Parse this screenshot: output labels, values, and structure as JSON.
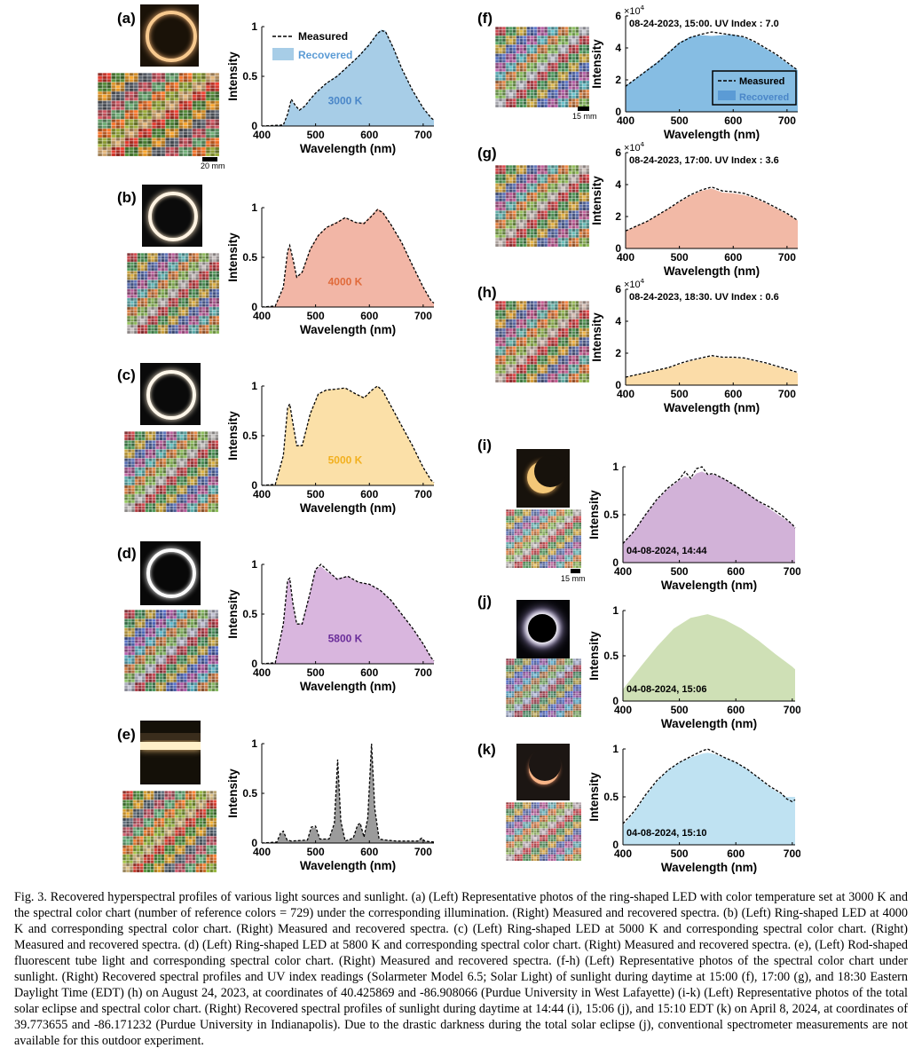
{
  "panels": [
    {
      "id": "a",
      "label": "(a)",
      "chart_data": {
        "type": "area",
        "xlabel": "Wavelength (nm)",
        "ylabel": "Intensity",
        "xlim": [
          400,
          720
        ],
        "ylim": [
          0,
          1
        ],
        "xticks": [
          400,
          500,
          600,
          700
        ],
        "yticks": [
          0,
          0.5,
          1
        ],
        "annotation": "3000 K",
        "annotation_color": "#4a86c8",
        "fill": "#a7cde7",
        "legend": {
          "placement": "top-left",
          "entries": [
            "Measured",
            "Recovered"
          ]
        },
        "x": [
          400,
          440,
          448,
          455,
          462,
          470,
          480,
          490,
          500,
          520,
          540,
          560,
          580,
          600,
          615,
          622,
          630,
          645,
          660,
          680,
          700,
          715,
          720
        ],
        "measured": [
          0,
          0.01,
          0.12,
          0.27,
          0.21,
          0.16,
          0.2,
          0.27,
          0.33,
          0.43,
          0.5,
          0.6,
          0.7,
          0.82,
          0.93,
          0.96,
          0.95,
          0.78,
          0.58,
          0.36,
          0.18,
          0.08,
          0.06
        ],
        "recovered": [
          0,
          0.01,
          0.11,
          0.26,
          0.2,
          0.16,
          0.2,
          0.27,
          0.33,
          0.43,
          0.51,
          0.6,
          0.71,
          0.83,
          0.94,
          0.97,
          0.96,
          0.79,
          0.58,
          0.36,
          0.18,
          0.08,
          0.06
        ]
      }
    },
    {
      "id": "b",
      "label": "(b)",
      "chart_data": {
        "type": "area",
        "xlabel": "Wavelength (nm)",
        "ylabel": "Intensity",
        "xlim": [
          400,
          720
        ],
        "ylim": [
          0,
          1
        ],
        "xticks": [
          400,
          500,
          600,
          700
        ],
        "yticks": [
          0,
          0.5,
          1
        ],
        "annotation": "4000 K",
        "annotation_color": "#e06a3a",
        "fill": "#f2b6a6",
        "x": [
          400,
          425,
          440,
          448,
          452,
          458,
          465,
          475,
          490,
          505,
          520,
          540,
          555,
          575,
          590,
          605,
          615,
          625,
          640,
          660,
          680,
          700,
          715,
          720
        ],
        "measured": [
          0,
          0.01,
          0.2,
          0.56,
          0.62,
          0.48,
          0.3,
          0.35,
          0.58,
          0.72,
          0.8,
          0.85,
          0.9,
          0.85,
          0.84,
          0.92,
          0.98,
          0.95,
          0.83,
          0.65,
          0.42,
          0.2,
          0.06,
          0.04
        ],
        "recovered": [
          0,
          0.01,
          0.19,
          0.55,
          0.61,
          0.47,
          0.3,
          0.36,
          0.59,
          0.73,
          0.8,
          0.86,
          0.9,
          0.85,
          0.85,
          0.93,
          0.99,
          0.96,
          0.83,
          0.65,
          0.42,
          0.2,
          0.06,
          0.04
        ]
      }
    },
    {
      "id": "c",
      "label": "(c)",
      "chart_data": {
        "type": "area",
        "xlabel": "Wavelength (nm)",
        "ylabel": "Intensity",
        "xlim": [
          400,
          720
        ],
        "ylim": [
          0,
          1
        ],
        "xticks": [
          400,
          500,
          600,
          700
        ],
        "yticks": [
          0,
          0.5,
          1
        ],
        "annotation": "5000 K",
        "annotation_color": "#f2b01e",
        "fill": "#fbe0a8",
        "x": [
          400,
          425,
          440,
          448,
          452,
          458,
          465,
          475,
          490,
          505,
          520,
          540,
          555,
          575,
          590,
          605,
          615,
          625,
          640,
          660,
          680,
          700,
          715,
          720
        ],
        "measured": [
          0,
          0.01,
          0.3,
          0.78,
          0.82,
          0.62,
          0.4,
          0.4,
          0.72,
          0.92,
          0.96,
          0.97,
          0.98,
          0.92,
          0.88,
          0.96,
          1.0,
          0.95,
          0.8,
          0.6,
          0.4,
          0.18,
          0.05,
          0.03
        ],
        "recovered": [
          0,
          0.01,
          0.29,
          0.77,
          0.81,
          0.61,
          0.4,
          0.41,
          0.73,
          0.92,
          0.96,
          0.97,
          0.98,
          0.92,
          0.89,
          0.96,
          1.0,
          0.95,
          0.8,
          0.6,
          0.4,
          0.18,
          0.05,
          0.03
        ]
      }
    },
    {
      "id": "d",
      "label": "(d)",
      "chart_data": {
        "type": "area",
        "xlabel": "Wavelength (nm)",
        "ylabel": "Intensity",
        "xlim": [
          400,
          720
        ],
        "ylim": [
          0,
          1
        ],
        "xticks": [
          400,
          500,
          600,
          700
        ],
        "yticks": [
          0,
          0.5,
          1
        ],
        "annotation": "5800 K",
        "annotation_color": "#6a2d9a",
        "fill": "#d9b6de",
        "x": [
          400,
          425,
          440,
          448,
          452,
          458,
          465,
          475,
          490,
          500,
          510,
          520,
          540,
          560,
          580,
          600,
          620,
          640,
          660,
          680,
          700,
          715,
          720
        ],
        "measured": [
          0,
          0.01,
          0.4,
          0.84,
          0.86,
          0.6,
          0.4,
          0.4,
          0.72,
          0.95,
          1.0,
          0.95,
          0.85,
          0.88,
          0.82,
          0.8,
          0.74,
          0.64,
          0.5,
          0.36,
          0.2,
          0.06,
          0.03
        ],
        "recovered": [
          0,
          0.01,
          0.39,
          0.83,
          0.85,
          0.59,
          0.4,
          0.41,
          0.73,
          0.95,
          0.98,
          0.93,
          0.86,
          0.88,
          0.82,
          0.8,
          0.74,
          0.64,
          0.5,
          0.36,
          0.2,
          0.06,
          0.03
        ]
      }
    },
    {
      "id": "e",
      "label": "(e)",
      "chart_data": {
        "type": "area",
        "xlabel": "Wavelength (nm)",
        "ylabel": "Intensity",
        "xlim": [
          400,
          720
        ],
        "ylim": [
          0,
          1
        ],
        "xticks": [
          400,
          500,
          600,
          700
        ],
        "yticks": [
          0,
          0.5,
          1
        ],
        "fill": "#9b9b9b",
        "x": [
          400,
          428,
          435,
          440,
          447,
          455,
          485,
          492,
          500,
          508,
          525,
          535,
          541,
          547,
          555,
          570,
          578,
          583,
          590,
          597,
          604,
          610,
          618,
          630,
          650,
          690,
          697,
          703,
          720
        ],
        "measured": [
          0,
          0.01,
          0.1,
          0.12,
          0.03,
          0.02,
          0.03,
          0.16,
          0.17,
          0.04,
          0.04,
          0.2,
          0.84,
          0.22,
          0.02,
          0.05,
          0.18,
          0.2,
          0.06,
          0.25,
          1.0,
          0.35,
          0.04,
          0.03,
          0.02,
          0.02,
          0.05,
          0.02,
          0.01
        ],
        "recovered": [
          0,
          0.01,
          0.09,
          0.11,
          0.03,
          0.02,
          0.03,
          0.15,
          0.16,
          0.04,
          0.04,
          0.19,
          0.83,
          0.22,
          0.02,
          0.05,
          0.17,
          0.2,
          0.06,
          0.24,
          0.99,
          0.34,
          0.04,
          0.03,
          0.02,
          0.02,
          0.05,
          0.02,
          0.01
        ]
      }
    },
    {
      "id": "f",
      "label": "(f)",
      "scale": "15 mm",
      "chart_data": {
        "type": "area",
        "xlabel": "Wavelength (nm)",
        "ylabel": "Intensity",
        "xlim": [
          400,
          720
        ],
        "ylim": [
          0,
          60000
        ],
        "xticks": [
          400,
          500,
          600,
          700
        ],
        "yticks": [
          0,
          2,
          4,
          6
        ],
        "multiplier": "×10",
        "multiplier_exp": "4",
        "title": "08-24-2023, 15:00. UV Index : 7.0",
        "fill": "#86bde3",
        "legend": {
          "placement": "bottom-right",
          "entries": [
            "Measured",
            "Recovered"
          ]
        },
        "x": [
          400,
          420,
          440,
          460,
          480,
          500,
          520,
          540,
          560,
          580,
          600,
          620,
          640,
          660,
          680,
          700,
          720
        ],
        "measured": [
          16000,
          21000,
          26000,
          31000,
          37000,
          43000,
          46500,
          48500,
          50000,
          49000,
          48000,
          47000,
          44000,
          40000,
          36000,
          31000,
          26000
        ],
        "recovered": [
          16500,
          21000,
          26500,
          31500,
          37500,
          43500,
          47000,
          48000,
          47500,
          48000,
          48500,
          46500,
          43500,
          39500,
          35500,
          30500,
          26000
        ]
      }
    },
    {
      "id": "g",
      "label": "(g)",
      "chart_data": {
        "type": "area",
        "xlabel": "Wavelength (nm)",
        "ylabel": "Intensity",
        "xlim": [
          400,
          720
        ],
        "ylim": [
          0,
          60000
        ],
        "xticks": [
          400,
          500,
          600,
          700
        ],
        "yticks": [
          0,
          2,
          4,
          6
        ],
        "multiplier": "×10",
        "multiplier_exp": "4",
        "title": "08-24-2023, 17:00. UV Index : 3.6",
        "fill": "#f2b9a6",
        "x": [
          400,
          420,
          440,
          460,
          480,
          500,
          520,
          540,
          560,
          580,
          600,
          620,
          640,
          660,
          680,
          700,
          720
        ],
        "measured": [
          11000,
          14000,
          17000,
          21000,
          25000,
          29500,
          33500,
          36500,
          38500,
          36000,
          35500,
          34500,
          32000,
          29000,
          25500,
          22000,
          17500
        ],
        "recovered": [
          11000,
          14000,
          17000,
          21000,
          25000,
          29000,
          33000,
          36000,
          37500,
          35000,
          34500,
          33500,
          31500,
          28500,
          25000,
          21500,
          17500
        ]
      }
    },
    {
      "id": "h",
      "label": "(h)",
      "chart_data": {
        "type": "area",
        "xlabel": "Wavelength (nm)",
        "ylabel": "Intensity",
        "xlim": [
          400,
          720
        ],
        "ylim": [
          0,
          60000
        ],
        "xticks": [
          400,
          500,
          600,
          700
        ],
        "yticks": [
          0,
          2,
          4,
          6
        ],
        "multiplier": "×10",
        "multiplier_exp": "4",
        "title": "08-24-2023, 18:30. UV Index : 0.6",
        "fill": "#fbdca8",
        "x": [
          400,
          420,
          440,
          460,
          480,
          500,
          520,
          540,
          560,
          580,
          600,
          620,
          640,
          660,
          680,
          700,
          720
        ],
        "measured": [
          5000,
          6500,
          8000,
          9500,
          11000,
          13500,
          15500,
          17000,
          18500,
          17500,
          17500,
          17000,
          15500,
          14000,
          12000,
          10000,
          8000
        ],
        "recovered": [
          5000,
          6500,
          8000,
          9500,
          11000,
          13000,
          15000,
          16500,
          18000,
          17000,
          17000,
          16500,
          15000,
          13500,
          11500,
          9500,
          7500
        ]
      }
    },
    {
      "id": "i",
      "label": "(i)",
      "scale": "15 mm",
      "chart_data": {
        "type": "area",
        "xlabel": "Wavelength (nm)",
        "ylabel": "Intensity",
        "xlim": [
          400,
          705
        ],
        "ylim": [
          0,
          1
        ],
        "xticks": [
          400,
          500,
          600,
          700
        ],
        "yticks": [
          0,
          0.5,
          1
        ],
        "title": "04-08-2024, 14:44",
        "fill": "#d2b2d8",
        "x": [
          400,
          420,
          440,
          460,
          480,
          500,
          510,
          520,
          530,
          540,
          550,
          560,
          580,
          600,
          620,
          640,
          660,
          680,
          700,
          705
        ],
        "measured": [
          0.2,
          0.33,
          0.5,
          0.66,
          0.78,
          0.87,
          0.95,
          0.88,
          0.98,
          1.0,
          0.92,
          0.93,
          0.87,
          0.8,
          0.72,
          0.64,
          0.58,
          0.5,
          0.4,
          0.36
        ],
        "recovered": [
          0.2,
          0.33,
          0.5,
          0.65,
          0.77,
          0.86,
          0.9,
          0.87,
          0.93,
          0.95,
          0.92,
          0.92,
          0.87,
          0.8,
          0.72,
          0.64,
          0.56,
          0.48,
          0.4,
          0.36
        ]
      }
    },
    {
      "id": "j",
      "label": "(j)",
      "chart_data": {
        "type": "area",
        "xlabel": "Wavelength (nm)",
        "ylabel": "Intensity",
        "xlim": [
          400,
          705
        ],
        "ylim": [
          0,
          1
        ],
        "xticks": [
          400,
          500,
          600,
          700
        ],
        "yticks": [
          0,
          0.5,
          1
        ],
        "title": "04-08-2024, 15:06",
        "fill": "#cfe0b6",
        "x": [
          400,
          430,
          460,
          490,
          520,
          550,
          580,
          610,
          640,
          670,
          700,
          705
        ],
        "recovered": [
          0.13,
          0.37,
          0.6,
          0.8,
          0.92,
          0.96,
          0.9,
          0.8,
          0.67,
          0.52,
          0.38,
          0.35
        ]
      }
    },
    {
      "id": "k",
      "label": "(k)",
      "chart_data": {
        "type": "area",
        "xlabel": "Wavelength (nm)",
        "ylabel": "Intensity",
        "xlim": [
          400,
          705
        ],
        "ylim": [
          0,
          1
        ],
        "xticks": [
          400,
          500,
          600,
          700
        ],
        "yticks": [
          0,
          0.5,
          1
        ],
        "title": "04-08-2024, 15:10",
        "fill": "#bfe2f2",
        "x": [
          400,
          420,
          440,
          460,
          480,
          500,
          520,
          540,
          550,
          560,
          580,
          600,
          620,
          640,
          660,
          680,
          690,
          700,
          705
        ],
        "measured": [
          0.22,
          0.35,
          0.52,
          0.67,
          0.78,
          0.86,
          0.92,
          0.98,
          1.0,
          0.97,
          0.91,
          0.86,
          0.79,
          0.7,
          0.61,
          0.54,
          0.48,
          0.45,
          0.47
        ],
        "recovered": [
          0.2,
          0.34,
          0.51,
          0.66,
          0.78,
          0.86,
          0.91,
          0.95,
          0.96,
          0.95,
          0.91,
          0.86,
          0.79,
          0.7,
          0.6,
          0.53,
          0.5,
          0.5,
          0.5
        ]
      }
    }
  ],
  "caption": "Fig. 3.   Recovered hyperspectral profiles of various light sources and sunlight. (a) (Left) Representative photos of the ring-shaped LED with color temperature set at 3000 K and the spectral color chart (number of reference colors = 729) under the corresponding illumination. (Right) Measured and recovered spectra. (b) (Left) Ring-shaped LED at 4000 K and corresponding spectral color chart. (Right) Measured and recovered spectra. (c) (Left) Ring-shaped LED at 5000 K and corresponding spectral color chart. (Right) Measured and recovered spectra. (d) (Left) Ring-shaped LED at 5800 K and corresponding spectral color chart. (Right) Measured and recovered spectra. (e), (Left) Rod-shaped fluorescent tube light and corresponding spectral color chart. (Right) Measured and recovered spectra. (f-h) (Left) Representative photos of the spectral color chart under sunlight. (Right) Recovered spectral profiles and UV index readings (Solarmeter Model 6.5; Solar Light) of sunlight during daytime at 15:00 (f), 17:00 (g), and 18:30 Eastern Daylight Time (EDT) (h) on August 24, 2023, at coordinates of 40.425869 and -86.908066 (Purdue University in West Lafayette) (i-k) (Left) Representative photos of the total solar eclipse and spectral color chart. (Right) Recovered spectral profiles of sunlight during daytime at 14:44 (i), 15:06 (j), and 15:10 EDT (k) on April 8, 2024, at coordinates of 39.773655 and -86.171232 (Purdue University in Indianapolis). Due to the drastic darkness during the total solar eclipse (j), conventional spectrometer measurements are not available for this outdoor experiment.",
  "scale_a": "20 mm"
}
